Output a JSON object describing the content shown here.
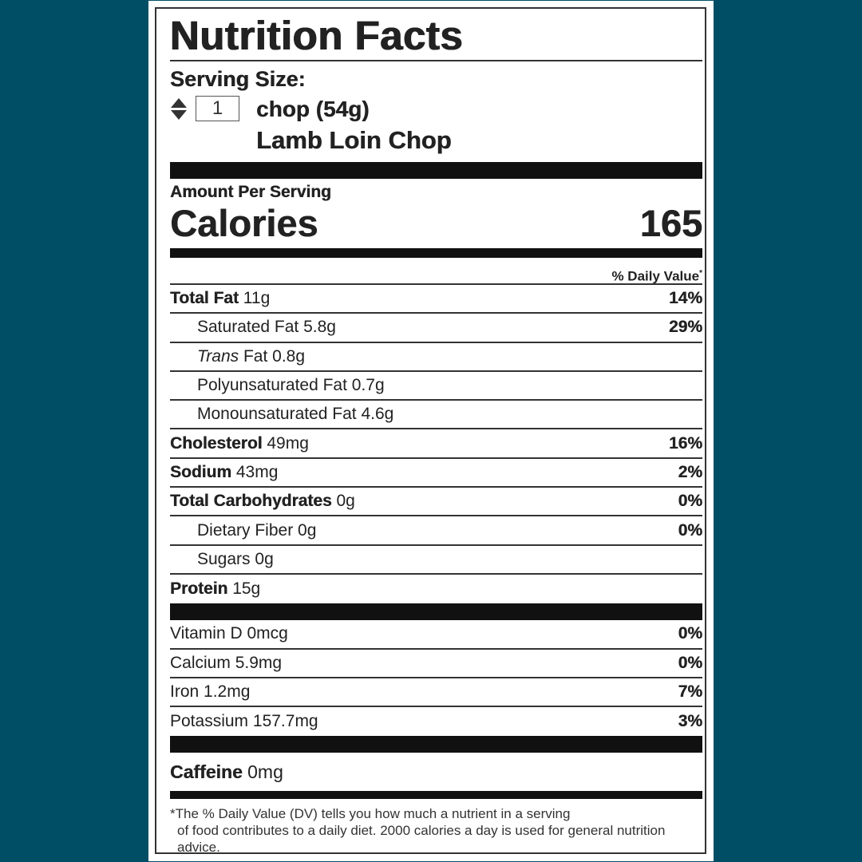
{
  "label": {
    "title": "Nutrition Facts",
    "serving_size_label": "Serving Size:",
    "serving_quantity": "1",
    "serving_unit": "chop (54g)",
    "food_name": "Lamb Loin Chop",
    "amount_per_serving": "Amount Per Serving",
    "calories_label": "Calories",
    "calories_value": "165",
    "daily_value_header": "% Daily Value",
    "daily_value_mark": "*",
    "nutrients": [
      {
        "name": "Total Fat",
        "amount": "11g",
        "dv": "14%"
      },
      {
        "name": "Saturated Fat",
        "amount": "5.8g",
        "dv": "29%"
      },
      {
        "name": "Trans",
        "name_suffix": "Fat",
        "amount": "0.8g",
        "dv": ""
      },
      {
        "name": "Polyunsaturated Fat",
        "amount": "0.7g",
        "dv": ""
      },
      {
        "name": "Monounsaturated Fat",
        "amount": "4.6g",
        "dv": ""
      },
      {
        "name": "Cholesterol",
        "amount": "49mg",
        "dv": "16%"
      },
      {
        "name": "Sodium",
        "amount": "43mg",
        "dv": "2%"
      },
      {
        "name": "Total Carbohydrates",
        "amount": "0g",
        "dv": "0%"
      },
      {
        "name": "Dietary Fiber",
        "amount": "0g",
        "dv": "0%"
      },
      {
        "name": "Sugars",
        "amount": "0g",
        "dv": ""
      },
      {
        "name": "Protein",
        "amount": "15g",
        "dv": ""
      }
    ],
    "vitamins": [
      {
        "name": "Vitamin D",
        "amount": "0mcg",
        "dv": "0%"
      },
      {
        "name": "Calcium",
        "amount": "5.9mg",
        "dv": "0%"
      },
      {
        "name": "Iron",
        "amount": "1.2mg",
        "dv": "7%"
      },
      {
        "name": "Potassium",
        "amount": "157.7mg",
        "dv": "3%"
      }
    ],
    "caffeine": {
      "name": "Caffeine",
      "amount": "0mg"
    },
    "footnote_mark": "*",
    "footnote_line1": "The % Daily Value (DV) tells you how much a nutrient in a serving",
    "footnote_rest": "of food contributes to a daily diet. 2000 calories a day is used for general nutrition advice."
  }
}
